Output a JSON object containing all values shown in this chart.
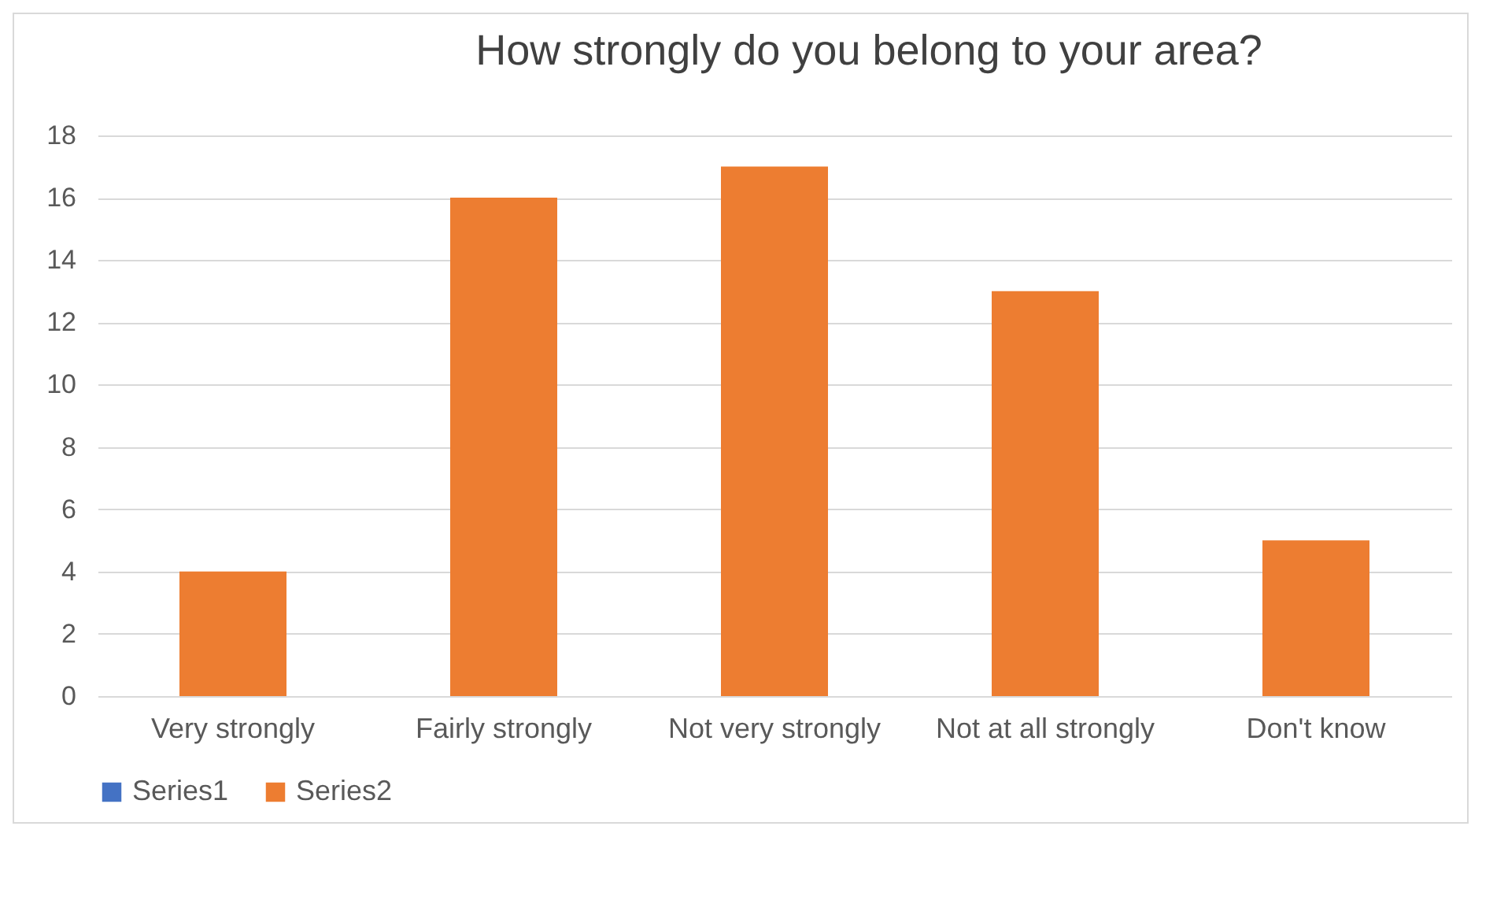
{
  "chart_data": {
    "type": "bar",
    "title": "How strongly do you belong to your area?",
    "categories": [
      "Very strongly",
      "Fairly strongly",
      "Not very strongly",
      "Not at all strongly",
      "Don't know"
    ],
    "series": [
      {
        "name": "Series1",
        "color": "#4472c4",
        "values": [
          null,
          null,
          null,
          null,
          null
        ]
      },
      {
        "name": "Series2",
        "color": "#ed7d31",
        "values": [
          4,
          16,
          17,
          13,
          5
        ]
      }
    ],
    "ylim": [
      0,
      18
    ],
    "yticks": [
      0,
      2,
      4,
      6,
      8,
      10,
      12,
      14,
      16,
      18
    ],
    "grid": "y",
    "legend": "bottom"
  }
}
